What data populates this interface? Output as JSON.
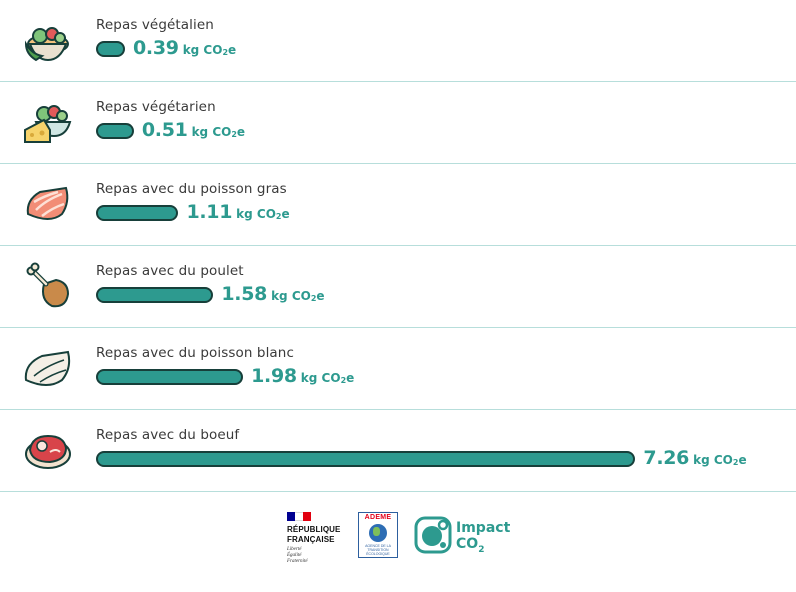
{
  "chart_data": {
    "type": "bar",
    "orientation": "horizontal",
    "categories": [
      "Repas végétalien",
      "Repas végétarien",
      "Repas avec du poisson gras",
      "Repas avec du poulet",
      "Repas avec du poisson blanc",
      "Repas avec du boeuf"
    ],
    "values": [
      0.39,
      0.51,
      1.11,
      1.58,
      1.98,
      7.26
    ],
    "value_labels": [
      "0.39",
      "0.51",
      "1.11",
      "1.58",
      "1.98",
      "7.26"
    ],
    "unit": "kg CO₂e",
    "unit_prefix": "kg CO",
    "unit_subscript": "2",
    "unit_suffix": "e",
    "icons": [
      "salad-bowl-icon",
      "salad-cheese-icon",
      "salmon-steak-icon",
      "chicken-leg-icon",
      "white-fish-icon",
      "beef-steak-icon"
    ],
    "bar_color": "#2d9a8f",
    "bar_border_color": "#173f3a",
    "value_color": "#2d9a8f",
    "grid": false
  },
  "footer": {
    "republique_line1": "RÉPUBLIQUE",
    "republique_line2": "FRANÇAISE",
    "motto": [
      "Liberté",
      "Égalité",
      "Fraternité"
    ],
    "ademe_name": "ADEME",
    "ademe_sub": "AGENCE DE LA TRANSITION ÉCOLOGIQUE",
    "impact_line1": "Impact",
    "impact_line2_prefix": "CO",
    "impact_line2_sub": "2"
  }
}
